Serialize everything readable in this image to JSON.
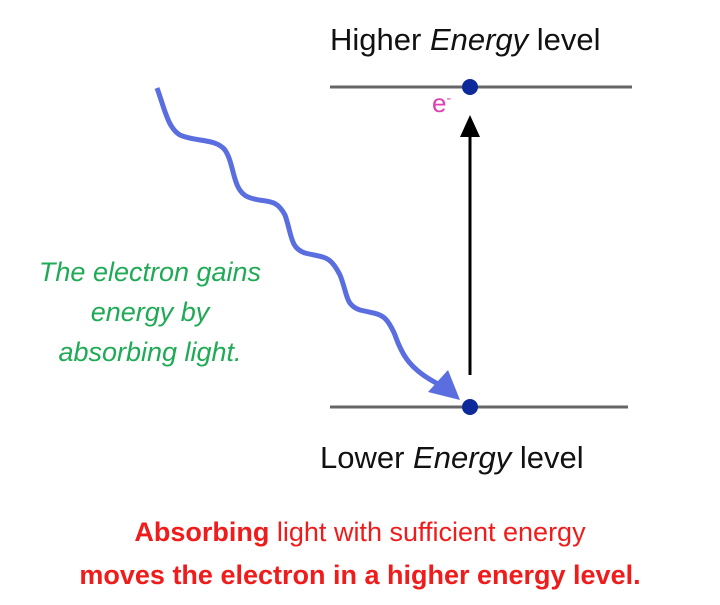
{
  "higher_level": {
    "prefix": "Higher ",
    "em": "Energy",
    "suffix": " level"
  },
  "lower_level": {
    "prefix": "Lower ",
    "em": "Energy",
    "suffix": " level"
  },
  "electron_label": "e",
  "electron_charge": "-",
  "caption_green": [
    "The electron gains",
    "energy by",
    "absorbing light."
  ],
  "caption_red": {
    "line1_bold": "Absorbing",
    "line1_rest": " light with sufficient energy",
    "line2": "moves the electron in a higher energy level."
  },
  "colors": {
    "photon": "#5a6ee0",
    "electron": "#0d2a9a",
    "level_line": "#666666",
    "green_text": "#1faa55",
    "red_text": "#f01b1b",
    "electron_label": "#e040b0"
  }
}
